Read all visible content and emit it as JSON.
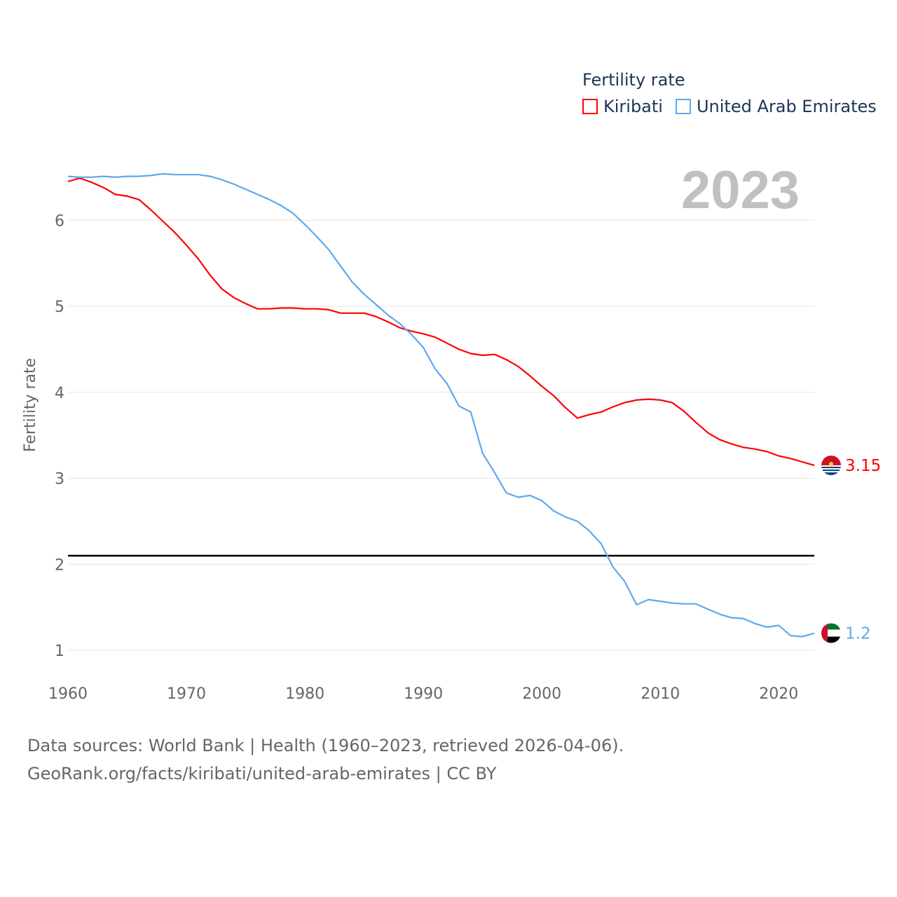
{
  "chart_data": {
    "type": "line",
    "title": "Fertility rate",
    "ylabel": "Fertility rate",
    "xlabel": "",
    "xlim": [
      1960,
      2023
    ],
    "ylim": [
      0.7,
      6.8
    ],
    "xticks": [
      1960,
      1970,
      1980,
      1990,
      2000,
      2010,
      2020
    ],
    "yticks": [
      1,
      2,
      3,
      4,
      5,
      6
    ],
    "grid": true,
    "legend_position": "top-right",
    "reference_line": 2.1,
    "current_year": "2023",
    "x": [
      1960,
      1961,
      1962,
      1963,
      1964,
      1965,
      1966,
      1967,
      1968,
      1969,
      1970,
      1971,
      1972,
      1973,
      1974,
      1975,
      1976,
      1977,
      1978,
      1979,
      1980,
      1981,
      1982,
      1983,
      1984,
      1985,
      1986,
      1987,
      1988,
      1989,
      1990,
      1991,
      1992,
      1993,
      1994,
      1995,
      1996,
      1997,
      1998,
      1999,
      2000,
      2001,
      2002,
      2003,
      2004,
      2005,
      2006,
      2007,
      2008,
      2009,
      2010,
      2011,
      2012,
      2013,
      2014,
      2015,
      2016,
      2017,
      2018,
      2019,
      2020,
      2021,
      2022,
      2023
    ],
    "series": [
      {
        "name": "Kiribati",
        "color": "#ff0000",
        "end_label": "3.15",
        "values": [
          6.45,
          6.49,
          6.44,
          6.38,
          6.3,
          6.28,
          6.24,
          6.12,
          5.99,
          5.86,
          5.71,
          5.55,
          5.36,
          5.2,
          5.1,
          5.03,
          4.97,
          4.97,
          4.98,
          4.98,
          4.97,
          4.97,
          4.96,
          4.92,
          4.92,
          4.92,
          4.88,
          4.82,
          4.75,
          4.71,
          4.68,
          4.64,
          4.57,
          4.5,
          4.45,
          4.43,
          4.44,
          4.38,
          4.3,
          4.19,
          4.07,
          3.96,
          3.82,
          3.7,
          3.74,
          3.77,
          3.83,
          3.88,
          3.91,
          3.92,
          3.91,
          3.88,
          3.78,
          3.65,
          3.53,
          3.45,
          3.4,
          3.36,
          3.34,
          3.31,
          3.26,
          3.23,
          3.19,
          3.15
        ]
      },
      {
        "name": "United Arab Emirates",
        "color": "#5ea9ec",
        "end_label": "1.2",
        "values": [
          6.51,
          6.5,
          6.5,
          6.51,
          6.5,
          6.51,
          6.51,
          6.52,
          6.54,
          6.53,
          6.53,
          6.53,
          6.51,
          6.47,
          6.42,
          6.36,
          6.3,
          6.24,
          6.17,
          6.08,
          5.95,
          5.81,
          5.66,
          5.47,
          5.28,
          5.14,
          5.02,
          4.9,
          4.8,
          4.67,
          4.52,
          4.27,
          4.1,
          3.84,
          3.77,
          3.29,
          3.07,
          2.83,
          2.78,
          2.8,
          2.74,
          2.62,
          2.55,
          2.5,
          2.39,
          2.24,
          1.97,
          1.8,
          1.53,
          1.59,
          1.57,
          1.55,
          1.54,
          1.54,
          1.48,
          1.42,
          1.38,
          1.37,
          1.31,
          1.27,
          1.29,
          1.17,
          1.16,
          1.2
        ]
      }
    ]
  },
  "legend": {
    "title": "Fertility rate",
    "items": [
      "Kiribati",
      "United Arab Emirates"
    ]
  },
  "year_label": "2023",
  "footer": {
    "line1": "Data sources: World Bank | Health (1960–2023, retrieved 2026-04-06).",
    "line2": "GeoRank.org/facts/kiribati/united-arab-emirates | CC BY"
  }
}
